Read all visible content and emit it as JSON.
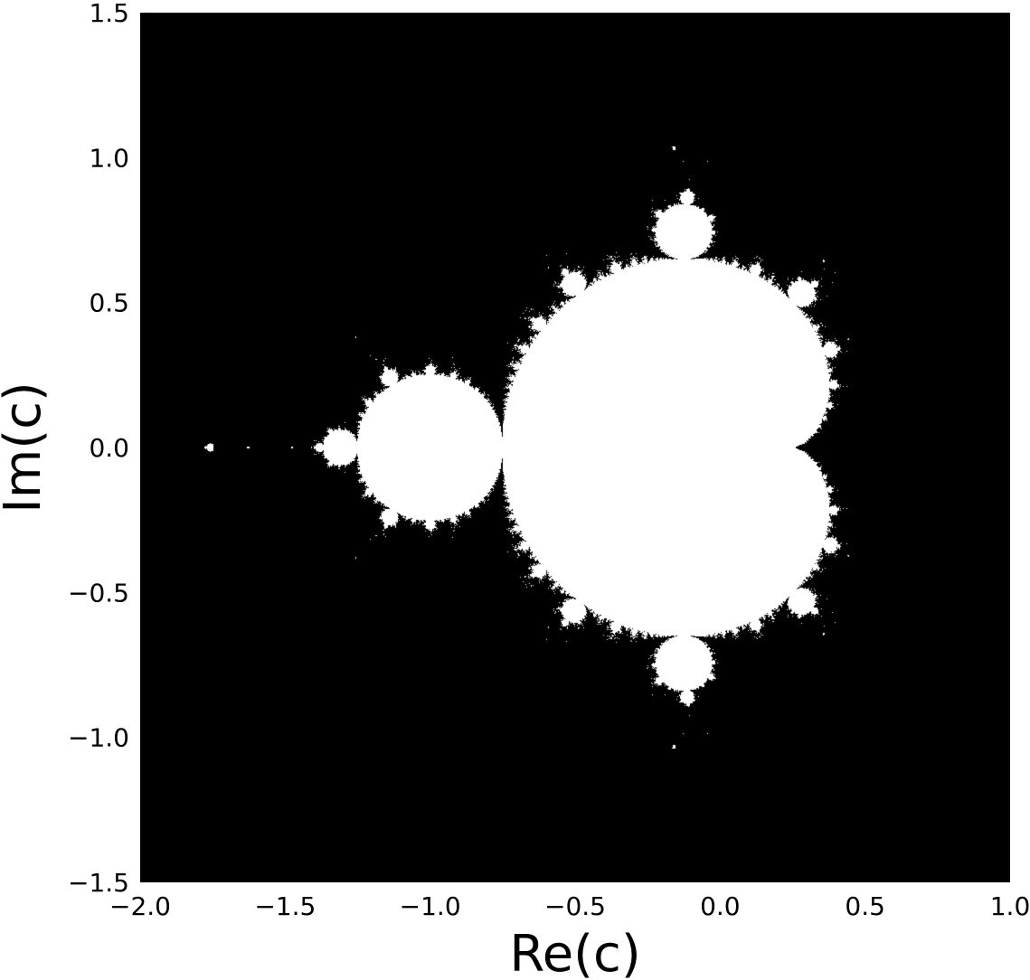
{
  "chart_data": {
    "type": "heatmap",
    "title": "",
    "xlabel": "Re(c)",
    "ylabel": "Im(c)",
    "xlim": [
      -2.0,
      1.0
    ],
    "ylim": [
      -1.5,
      1.5
    ],
    "x_ticks": [
      -2.0,
      -1.5,
      -1.0,
      -0.5,
      0.0,
      0.5,
      1.0
    ],
    "x_tick_labels": [
      "−2.0",
      "−1.5",
      "−1.0",
      "−0.5",
      "0.0",
      "0.5",
      "1.0"
    ],
    "y_ticks": [
      1.5,
      1.0,
      0.5,
      0.0,
      -0.5,
      -1.0,
      -1.5
    ],
    "y_tick_labels": [
      "1.5",
      "1.0",
      "0.5",
      "0.0",
      "−0.5",
      "−1.0",
      "−1.5"
    ],
    "grid": false,
    "colormap": {
      "inside_set": "#ffffff",
      "outside_set": "#000000"
    },
    "max_iterations": 80
  }
}
